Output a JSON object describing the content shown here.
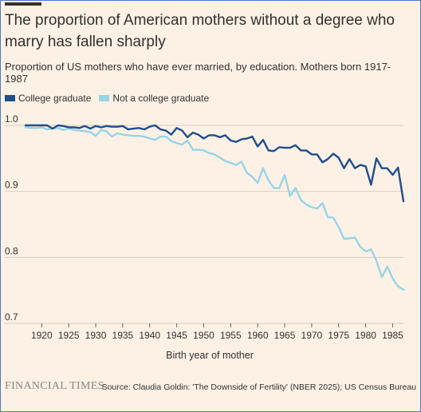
{
  "title": "The proportion of American mothers without a degree who marry has fallen sharply",
  "subtitle": "Proportion of US mothers who have ever married, by education. Mothers born 1917-1987",
  "brand": "FINANCIAL TIMES",
  "source": "Source: Claudia Goldin: 'The Downside of Fertility' (NBER 2025); US Census Bureau",
  "colors": {
    "background": "#fdf1e5",
    "college": "#1f4e8c",
    "non_college": "#96d4e8",
    "grid": "#d9ccc0",
    "text": "#33302e"
  },
  "chart_data": {
    "type": "line",
    "xlabel": "Birth year of mother",
    "ylabel": "",
    "xlim": [
      1917,
      1987
    ],
    "ylim": [
      0.7,
      1.0
    ],
    "x_ticks": [
      1920,
      1925,
      1930,
      1935,
      1940,
      1945,
      1950,
      1955,
      1960,
      1965,
      1970,
      1975,
      1980,
      1985
    ],
    "y_ticks": [
      0.7,
      0.8,
      0.9,
      1.0
    ],
    "y_tick_labels": [
      "0.7",
      "0.8",
      "0.9",
      "1.0"
    ],
    "legend_position": "top-left",
    "grid": "horizontal",
    "x": [
      1917,
      1918,
      1919,
      1920,
      1921,
      1922,
      1923,
      1924,
      1925,
      1926,
      1927,
      1928,
      1929,
      1930,
      1931,
      1932,
      1933,
      1934,
      1935,
      1936,
      1937,
      1938,
      1939,
      1940,
      1941,
      1942,
      1943,
      1944,
      1945,
      1946,
      1947,
      1948,
      1949,
      1950,
      1951,
      1952,
      1953,
      1954,
      1955,
      1956,
      1957,
      1958,
      1959,
      1960,
      1961,
      1962,
      1963,
      1964,
      1965,
      1966,
      1967,
      1968,
      1969,
      1970,
      1971,
      1972,
      1973,
      1974,
      1975,
      1976,
      1977,
      1978,
      1979,
      1980,
      1981,
      1982,
      1983,
      1984,
      1985,
      1986,
      1987
    ],
    "series": [
      {
        "name": "College graduate",
        "color": "#1f4e8c",
        "values": [
          1.0,
          1.0,
          1.0,
          1.0,
          1.0,
          0.995,
          1.0,
          0.999,
          0.997,
          0.997,
          0.996,
          0.999,
          0.995,
          0.999,
          0.997,
          0.999,
          0.998,
          0.998,
          0.999,
          0.994,
          0.995,
          0.996,
          0.994,
          0.998,
          1.0,
          0.994,
          0.992,
          0.986,
          0.996,
          0.992,
          0.982,
          0.989,
          0.986,
          0.98,
          0.985,
          0.985,
          0.982,
          0.985,
          0.977,
          0.975,
          0.979,
          0.98,
          0.983,
          0.968,
          0.978,
          0.962,
          0.961,
          0.967,
          0.966,
          0.966,
          0.97,
          0.962,
          0.962,
          0.956,
          0.956,
          0.944,
          0.949,
          0.957,
          0.951,
          0.935,
          0.949,
          0.935,
          0.94,
          0.938,
          0.91,
          0.95,
          0.935,
          0.935,
          0.925,
          0.936,
          0.885
        ]
      },
      {
        "name": "Not a college graduate",
        "color": "#96d4e8",
        "values": [
          0.997,
          0.996,
          0.996,
          0.997,
          0.994,
          0.995,
          0.996,
          0.993,
          0.995,
          0.993,
          0.992,
          0.991,
          0.99,
          0.984,
          0.993,
          0.991,
          0.983,
          0.988,
          0.986,
          0.985,
          0.984,
          0.984,
          0.983,
          0.98,
          0.978,
          0.983,
          0.983,
          0.976,
          0.973,
          0.971,
          0.977,
          0.963,
          0.963,
          0.962,
          0.958,
          0.956,
          0.951,
          0.946,
          0.943,
          0.94,
          0.945,
          0.928,
          0.922,
          0.913,
          0.935,
          0.917,
          0.905,
          0.905,
          0.925,
          0.893,
          0.905,
          0.887,
          0.88,
          0.876,
          0.874,
          0.882,
          0.861,
          0.86,
          0.846,
          0.828,
          0.829,
          0.83,
          0.816,
          0.809,
          0.812,
          0.795,
          0.77,
          0.786,
          0.768,
          0.756,
          0.751
        ]
      }
    ]
  }
}
